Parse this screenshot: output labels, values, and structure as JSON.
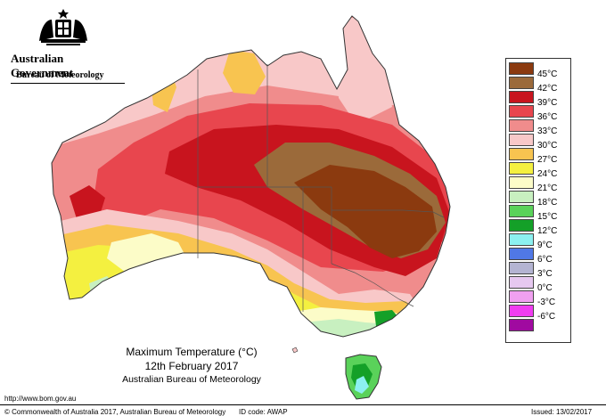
{
  "header": {
    "government": "Australian Government",
    "bureau": "Bureau of Meteorology"
  },
  "legend": {
    "items": [
      {
        "label": "45°C",
        "color": "#8B3A0F"
      },
      {
        "label": "42°C",
        "color": "#9B6A3A"
      },
      {
        "label": "39°C",
        "color": "#C8141E"
      },
      {
        "label": "36°C",
        "color": "#E8464E"
      },
      {
        "label": "33°C",
        "color": "#F08C8C"
      },
      {
        "label": "30°C",
        "color": "#F8C8C8"
      },
      {
        "label": "27°C",
        "color": "#F8C450"
      },
      {
        "label": "24°C",
        "color": "#F4F040"
      },
      {
        "label": "21°C",
        "color": "#FCFCC8"
      },
      {
        "label": "18°C",
        "color": "#C8F0C0"
      },
      {
        "label": "15°C",
        "color": "#5AD25A"
      },
      {
        "label": "12°C",
        "color": "#14A028"
      },
      {
        "label": "9°C",
        "color": "#8CF0F0"
      },
      {
        "label": "6°C",
        "color": "#5078E6"
      },
      {
        "label": "3°C",
        "color": "#B4B4D2"
      },
      {
        "label": "0°C",
        "color": "#E6C8F0"
      },
      {
        "label": "-3°C",
        "color": "#F0A0F0"
      },
      {
        "label": "-6°C",
        "color": "#F03CF0"
      },
      {
        "label": "",
        "color": "#A00AA0"
      }
    ]
  },
  "caption": {
    "line1": "Maximum Temperature (°C)",
    "line2": "12th February 2017",
    "line3": "Australian Bureau of Meteorology"
  },
  "footer": {
    "website": "http://www.bom.gov.au",
    "copyright": "© Commonwealth of Australia 2017, Australian Bureau of Meteorology",
    "id_code": "ID code: AWAP",
    "issued": "Issued: 13/02/2017"
  }
}
